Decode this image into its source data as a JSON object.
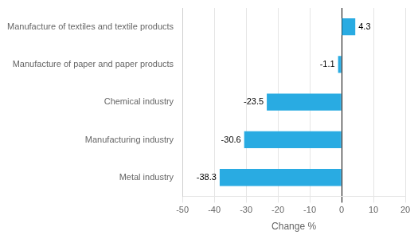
{
  "chart_data": {
    "type": "bar",
    "orientation": "horizontal",
    "categories": [
      "Metal industry",
      "Manufacturing industry",
      "Chemical industry",
      "Manufacture of paper and paper products",
      "Manufacture of textiles and textile products"
    ],
    "values": [
      -38.3,
      -30.6,
      -23.5,
      -1.1,
      4.3
    ],
    "color": "#29abe2",
    "xlabel": "Change %",
    "xlim": [
      -50,
      20
    ],
    "xticks": [
      -50,
      -40,
      -30,
      -20,
      -10,
      0,
      10,
      20
    ],
    "grid": true,
    "data_labels": true
  }
}
